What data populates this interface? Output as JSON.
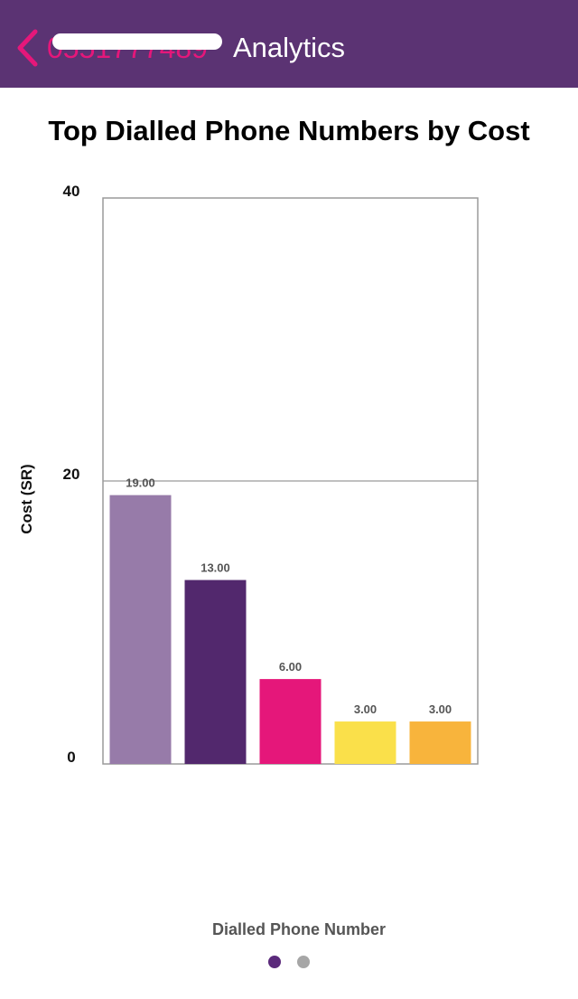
{
  "navbar": {
    "back_icon": "chevron-left-icon",
    "subject_label": "0551777489",
    "title": "Analytics",
    "background_color": "#5b3373",
    "accent_color": "#e5177a"
  },
  "chart_data": {
    "type": "bar",
    "title": "Top Dialled Phone Numbers by Cost",
    "xlabel": "Dialled Phone Number",
    "ylabel": "Cost (SR)",
    "ylim": [
      0,
      40
    ],
    "yticks": [
      0,
      20,
      40
    ],
    "grid": true,
    "categories": [
      "",
      "",
      "",
      "",
      ""
    ],
    "values": [
      19.0,
      13.0,
      6.0,
      3.0,
      3.0
    ],
    "value_labels": [
      "19.00",
      "13.00",
      "6.00",
      "3.00",
      "3.00"
    ],
    "colors": [
      "#977ba9",
      "#52286d",
      "#e5177a",
      "#fae04a",
      "#f8b43c"
    ]
  },
  "pagination": {
    "pages": 2,
    "active_index": 0,
    "active_color": "#5b2a7b",
    "inactive_color": "#a6a6a6"
  }
}
